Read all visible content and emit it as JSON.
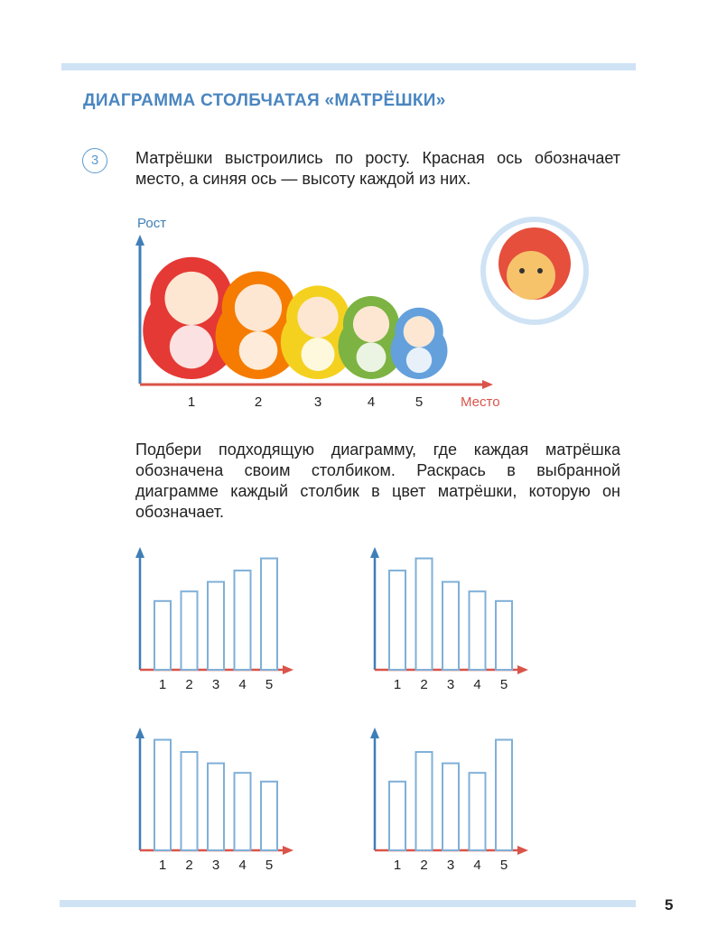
{
  "header": {
    "title": "ДИАГРАММА СТОЛБЧАТАЯ «МАТРЁШКИ»"
  },
  "task": {
    "number": "3",
    "text1": "Матрёшки выстроились по росту. Красная ось обозначает место, а синяя ось — высоту каждой из них.",
    "illustration": {
      "y_label": "Рост",
      "x_label": "Место",
      "places": [
        "1",
        "2",
        "3",
        "4",
        "5"
      ]
    },
    "text2": "Подбери подходящую диаграмму, где каждая матрёшка обозначена своим столбиком. Раскрась в выбранной диаграмме каждый столбик в цвет матрёшки, которую он обозначает."
  },
  "charts": [
    {
      "type": "bar",
      "categories": [
        "1",
        "2",
        "3",
        "4",
        "5"
      ],
      "values": [
        79,
        90,
        101,
        114,
        128
      ],
      "ylim": [
        0,
        140
      ]
    },
    {
      "type": "bar",
      "categories": [
        "1",
        "2",
        "3",
        "4",
        "5"
      ],
      "values": [
        114,
        128,
        101,
        90,
        79
      ],
      "ylim": [
        0,
        140
      ]
    },
    {
      "type": "bar",
      "categories": [
        "1",
        "2",
        "3",
        "4",
        "5"
      ],
      "values": [
        127,
        113,
        100,
        89,
        79
      ],
      "ylim": [
        0,
        140
      ]
    },
    {
      "type": "bar",
      "categories": [
        "1",
        "2",
        "3",
        "4",
        "5"
      ],
      "values": [
        79,
        113,
        100,
        89,
        127
      ],
      "ylim": [
        0,
        140
      ]
    }
  ],
  "footer": {
    "page": "5"
  }
}
